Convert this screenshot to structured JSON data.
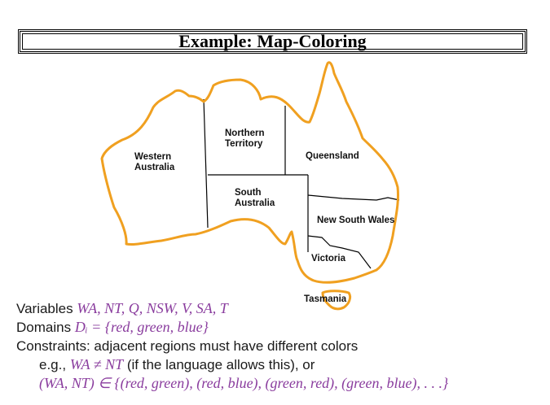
{
  "slide": {
    "title": "Example: Map-Coloring"
  },
  "map": {
    "regions": {
      "western_australia_l1": "Western",
      "western_australia_l2": "Australia",
      "northern_territory_l1": "Northern",
      "northern_territory_l2": "Territory",
      "queensland": "Queensland",
      "south_australia_l1": "South",
      "south_australia_l2": "Australia",
      "new_south_wales": "New South Wales",
      "victoria": "Victoria",
      "tasmania": "Tasmania"
    },
    "colors": {
      "outline": "#f0a020",
      "borders": "#000000"
    }
  },
  "text": {
    "variables_label": "Variables ",
    "variables_value": "WA, NT, Q, NSW, V, SA, T",
    "domains_label": "Domains ",
    "domains_value": "Dᵢ = {red, green, blue}",
    "constraints": "Constraints: adjacent regions must have different colors",
    "eg_prefix": "e.g., ",
    "eg_math": "WA ≠ NT",
    "eg_suffix": " (if the language allows this), or",
    "tuple_math": "(WA, NT) ∈ {(red, green), (red, blue), (green, red), (green, blue), . . .}"
  },
  "accent_color": "#8a3d9e"
}
